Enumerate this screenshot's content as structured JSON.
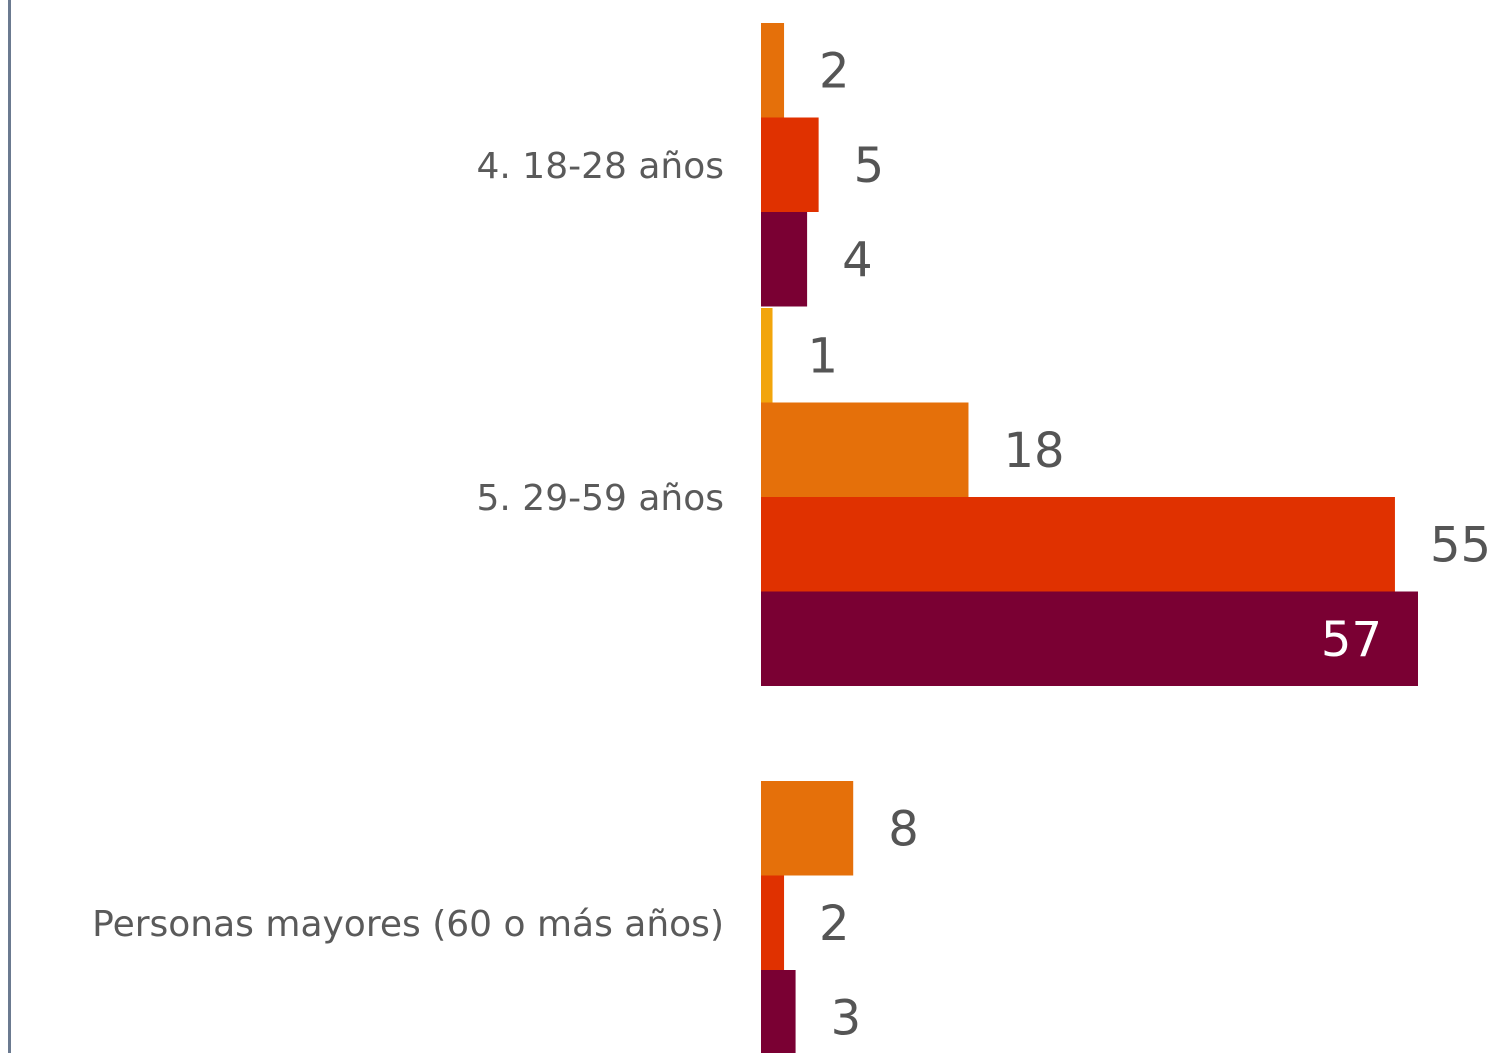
{
  "colors": {
    "background": "#ffffff",
    "border": "#6b7a90",
    "text": "#5a5a5a",
    "series_palette": [
      "#f2a50c",
      "#e5700a",
      "#e03100",
      "#7a0033"
    ]
  },
  "chart_data": {
    "type": "bar",
    "orientation": "horizontal",
    "title": "",
    "xlabel": "",
    "ylabel": "",
    "xlim": [
      0,
      57
    ],
    "grid": false,
    "legend": "none",
    "categories": [
      "4. 18-28 años",
      "5. 29-59 años",
      "Personas mayores (60 o más años)"
    ],
    "groups": [
      {
        "category": "4. 18-28 años",
        "bars": [
          {
            "value": 2,
            "label": "2",
            "color": "#e5700a"
          },
          {
            "value": 5,
            "label": "5",
            "color": "#e03100"
          },
          {
            "value": 4,
            "label": "4",
            "color": "#7a0033"
          }
        ]
      },
      {
        "category": "5. 29-59 años",
        "bars": [
          {
            "value": 1,
            "label": "1",
            "color": "#f2a50c"
          },
          {
            "value": 18,
            "label": "18",
            "color": "#e5700a"
          },
          {
            "value": 55,
            "label": "55",
            "color": "#e03100"
          },
          {
            "value": 57,
            "label": "57",
            "color": "#7a0033",
            "label_inside": true
          }
        ]
      },
      {
        "category": "Personas mayores (60 o más años)",
        "bars": [
          {
            "value": 8,
            "label": "8",
            "color": "#e5700a"
          },
          {
            "value": 2,
            "label": "2",
            "color": "#e03100"
          },
          {
            "value": 3,
            "label": "3",
            "color": "#7a0033"
          }
        ]
      }
    ]
  }
}
